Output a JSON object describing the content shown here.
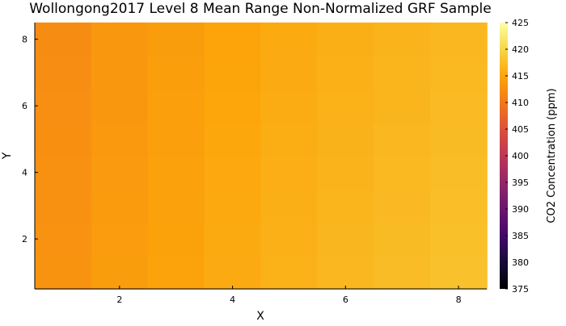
{
  "chart_data": {
    "type": "heatmap",
    "title": "Wollongong2017 Level 8 Mean Range Non-Normalized GRF Sample",
    "xlabel": "X",
    "ylabel": "Y",
    "xlim": [
      0.5,
      8.5
    ],
    "ylim": [
      0.5,
      8.5
    ],
    "x_ticks": [
      2,
      4,
      6,
      8
    ],
    "y_ticks": [
      2,
      4,
      6,
      8
    ],
    "x": [
      1,
      2,
      3,
      4,
      5,
      6,
      7,
      8
    ],
    "y": [
      1,
      2,
      3,
      4,
      5,
      6,
      7,
      8
    ],
    "colormap": "inferno",
    "colorbar": {
      "label": "CO2 Concentration (ppm)",
      "min": 375,
      "max": 425,
      "ticks": [
        375,
        380,
        385,
        390,
        395,
        400,
        405,
        410,
        415,
        420,
        425
      ]
    },
    "z": [
      [
        413.0,
        414.1,
        414.8,
        415.6,
        416.2,
        416.8,
        417.3,
        417.9
      ],
      [
        412.9,
        414.0,
        414.7,
        415.5,
        416.1,
        416.7,
        417.2,
        417.7
      ],
      [
        412.8,
        413.9,
        414.6,
        415.4,
        416.0,
        416.5,
        417.0,
        417.5
      ],
      [
        412.7,
        413.8,
        414.5,
        415.3,
        415.9,
        416.4,
        416.9,
        417.4
      ],
      [
        412.6,
        413.7,
        414.4,
        415.2,
        415.8,
        416.3,
        416.8,
        417.2
      ],
      [
        412.5,
        413.6,
        414.3,
        415.1,
        415.7,
        416.2,
        416.6,
        417.1
      ],
      [
        412.3,
        413.5,
        414.2,
        415.0,
        415.6,
        416.1,
        416.5,
        416.9
      ],
      [
        412.2,
        413.4,
        414.1,
        414.9,
        415.5,
        416.0,
        416.4,
        416.8
      ]
    ]
  }
}
